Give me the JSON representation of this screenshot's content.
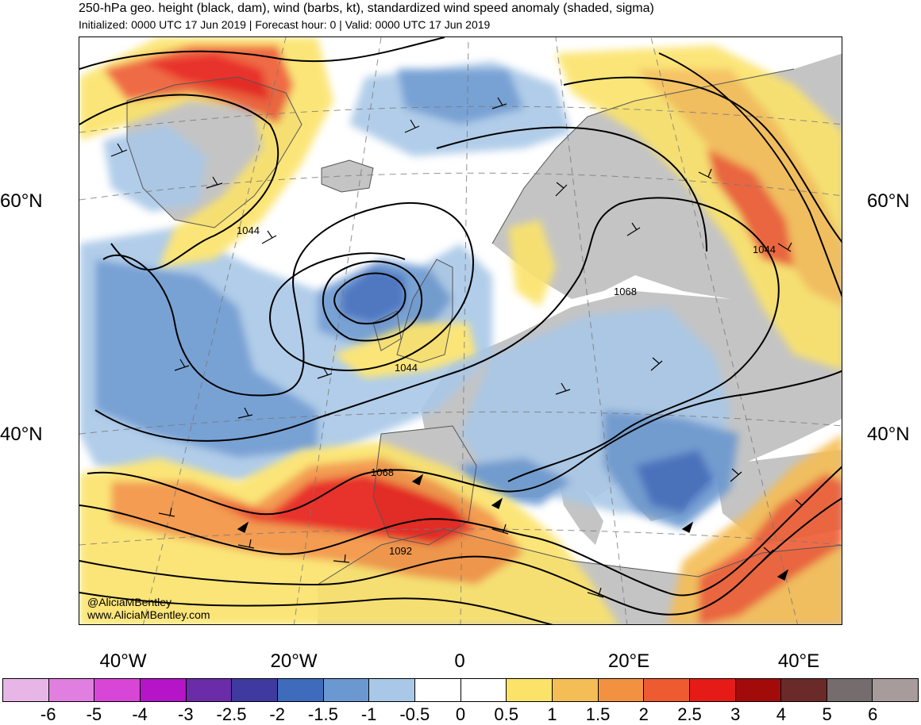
{
  "title": "250-hPa geo. height (black, dam), wind (barbs, kt), standardized wind speed anomaly (shaded, sigma)",
  "subtitle": "Initialized: 0000 UTC 17 Jun 2019 | Forecast hour: 0 | Valid: 0000 UTC 17 Jun 2019",
  "latitude_labels": [
    "60°N",
    "40°N"
  ],
  "longitude_labels": [
    "40°W",
    "20°W",
    "0",
    "20°E",
    "40°E"
  ],
  "contour_labels": [
    "1044",
    "1044",
    "1044",
    "1068",
    "1068",
    "1092"
  ],
  "credits": [
    "@AliciaMBentley",
    "www.AliciaMBentley.com"
  ],
  "colorbar": {
    "labels": [
      "-6",
      "-5",
      "-4",
      "-3",
      "-2.5",
      "-2",
      "-1.5",
      "-1",
      "-0.5",
      "0",
      "0.5",
      "1",
      "1.5",
      "2",
      "2.5",
      "3",
      "4",
      "5",
      "6"
    ],
    "colors": [
      "#e8b6e6",
      "#e07fdf",
      "#d846d8",
      "#b514c8",
      "#6a2ca8",
      "#3f3aa0",
      "#3e6bbb",
      "#6b98d0",
      "#a9c8e7",
      "#ffffff",
      "#ffffff",
      "#fbe36a",
      "#f5bd55",
      "#f29241",
      "#ee5b30",
      "#e61b18",
      "#a30b0b",
      "#6a2a2a",
      "#756d6d",
      "#a89b9b"
    ]
  },
  "colors": {
    "land": "#c4c4c4",
    "coast": "#555555",
    "contour": "#000000"
  }
}
